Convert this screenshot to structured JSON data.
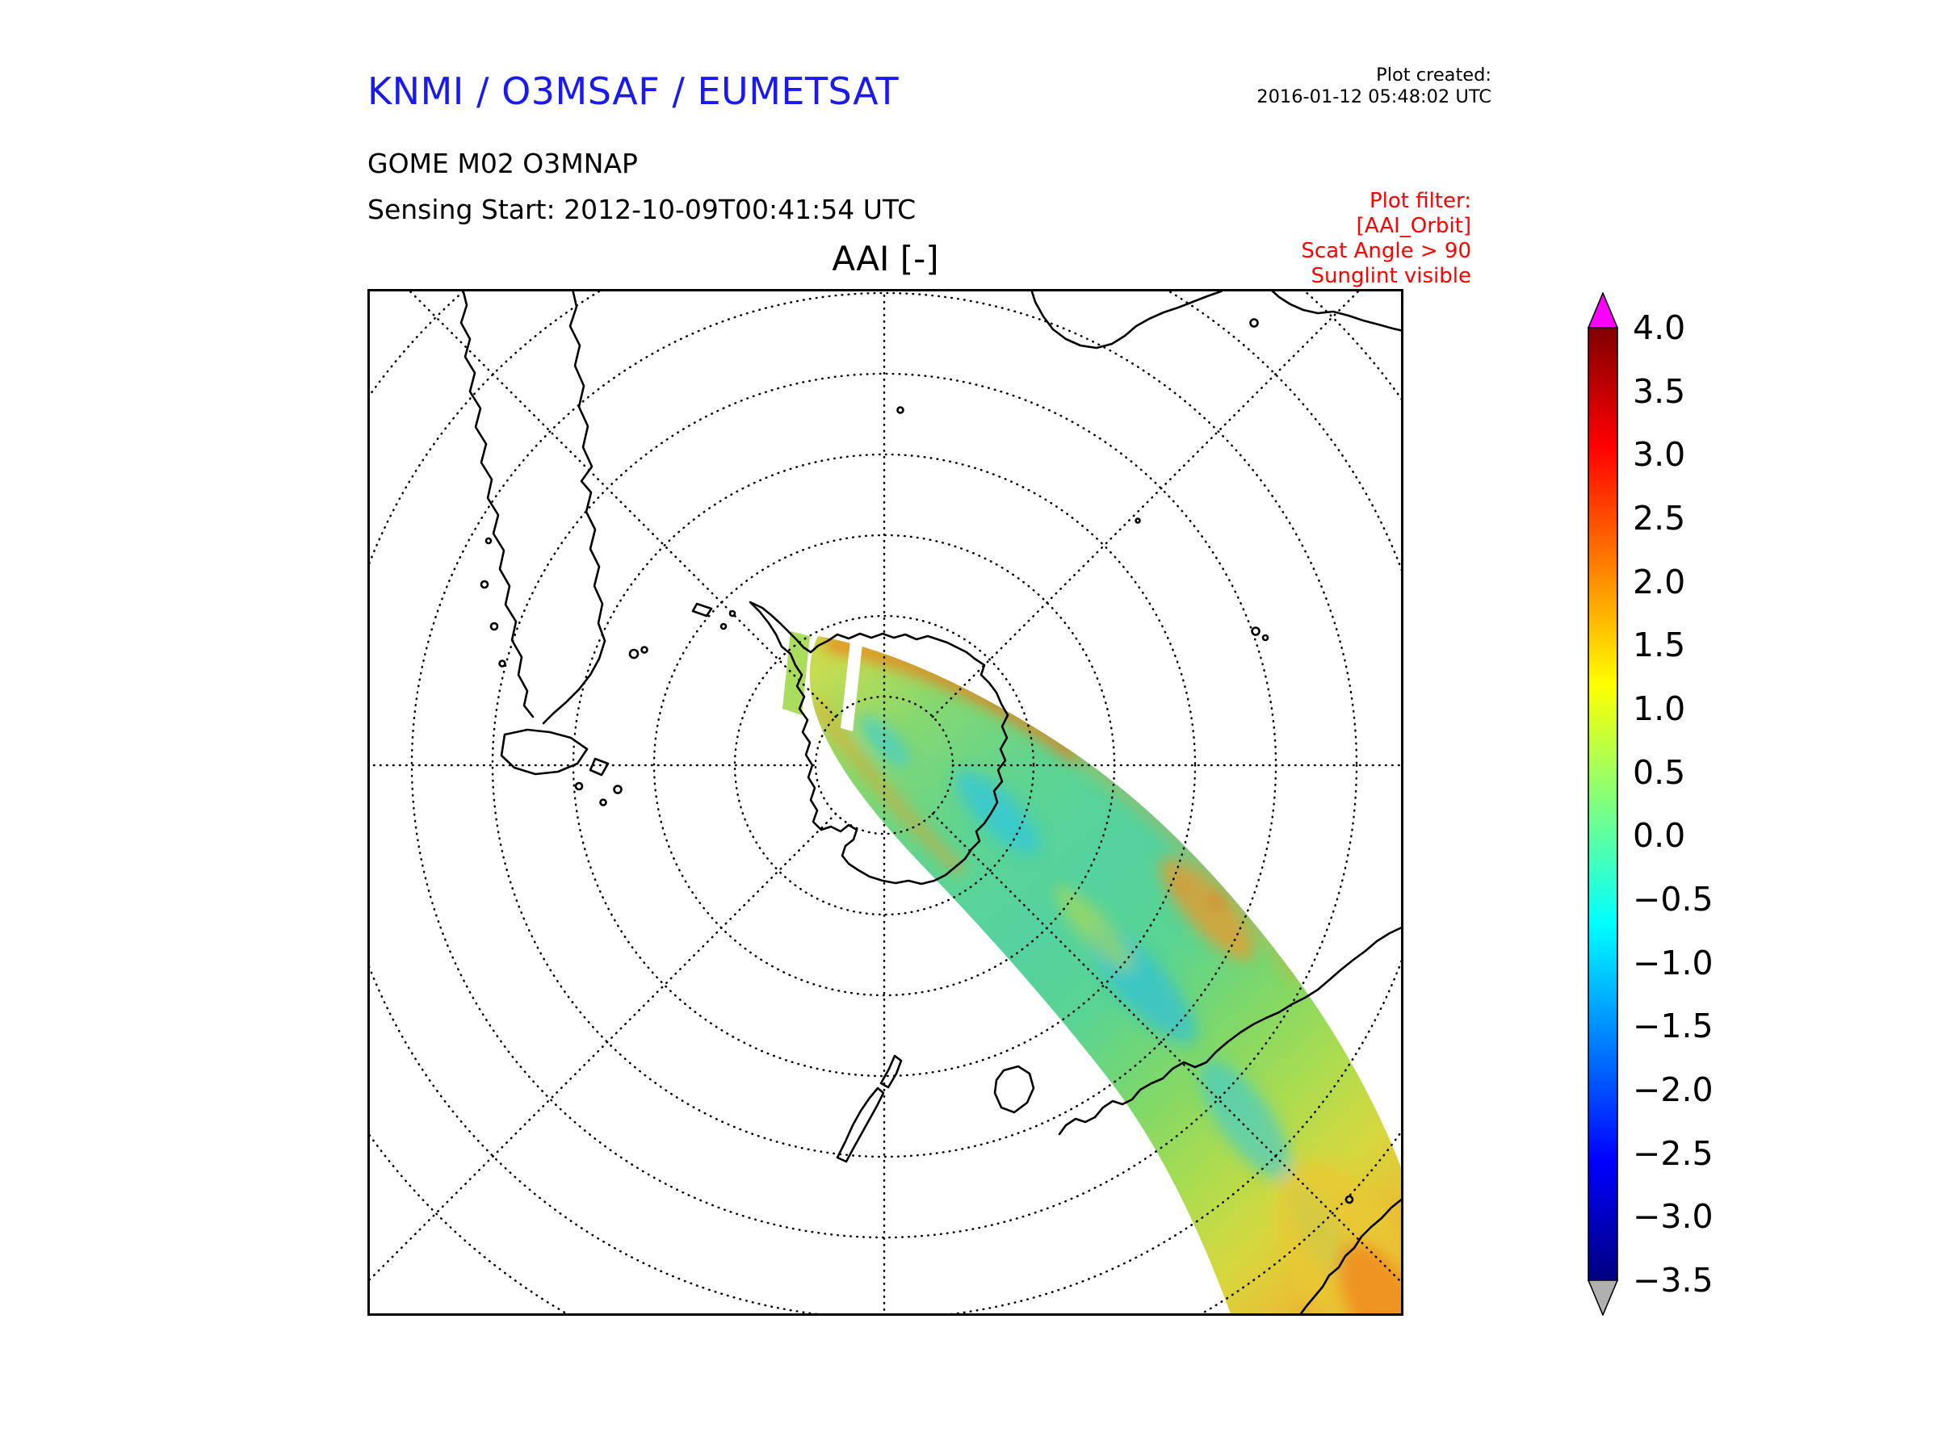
{
  "header": {
    "org_title": "KNMI / O3MSAF / EUMETSAT",
    "org_title_color": "#1a1aee",
    "plot_created_label": "Plot created:",
    "plot_created_value": "2016-01-12 05:48:02 UTC",
    "product_line": "GOME M02 O3MNAP",
    "sensing_line": "Sensing Start: 2012-10-09T00:41:54 UTC",
    "filter_color": "#ff0000",
    "filter_lines": [
      "Plot filter:",
      "[AAI_Orbit]",
      "Scat Angle > 90",
      "Sunglint visible"
    ]
  },
  "chart_data": {
    "type": "heatmap",
    "title": "AAI [-]",
    "projection": "south polar stereographic",
    "map_extent": "Southern Hemisphere centered on the South Pole; mid-latitude coasts visible at the map edges",
    "graticule": {
      "parallels_spacing_deg": 10,
      "meridians_spacing_deg": 45,
      "line_style": "dotted"
    },
    "visible_coastlines": [
      "Antarctica with Antarctic Peninsula",
      "southern South America (Patagonia, Tierra del Fuego, Falklands)",
      "southern Africa",
      "southern Australia",
      "Tasmania",
      "New Zealand",
      "scattered sub-antarctic islands"
    ],
    "colorbar": {
      "range": [
        -3.5,
        4.0
      ],
      "ticks": [
        4.0,
        3.5,
        3.0,
        2.5,
        2.0,
        1.5,
        1.0,
        0.5,
        0.0,
        -0.5,
        -1.0,
        -1.5,
        -2.0,
        -2.5,
        -3.0,
        -3.5
      ],
      "tick_labels": [
        "4.0",
        "3.5",
        "3.0",
        "2.5",
        "2.0",
        "1.5",
        "1.0",
        "0.5",
        "0.0",
        "−0.5",
        "−1.0",
        "−1.5",
        "−2.0",
        "−2.5",
        "−3.0",
        "−3.5"
      ],
      "colormap": "jet-like rainbow",
      "over_arrow_color": "#ff00ff",
      "under_arrow_color": "#b0b0b0",
      "gradient_stops": [
        {
          "offset": 0.0,
          "color": "#7f0000"
        },
        {
          "offset": 0.125,
          "color": "#ff0000"
        },
        {
          "offset": 0.375,
          "color": "#ffff00"
        },
        {
          "offset": 0.625,
          "color": "#00ffff"
        },
        {
          "offset": 0.875,
          "color": "#0000ff"
        },
        {
          "offset": 1.0,
          "color": "#00007f"
        }
      ]
    },
    "swath": {
      "description": "Single GOME-2 (MetOp-A) orbit swath of Absorbing Aerosol Index starting near the South Pole and sweeping north-east across East Antarctica toward the ocean south of Australia; a narrow detached sliver and a thin white data gap appear at the near-pole end.",
      "aai_along_track_samples": [
        {
          "track_fraction": 0.0,
          "mean_aai": 1.1
        },
        {
          "track_fraction": 0.1,
          "mean_aai": 0.6
        },
        {
          "track_fraction": 0.2,
          "mean_aai": 0.1
        },
        {
          "track_fraction": 0.3,
          "mean_aai": -0.3
        },
        {
          "track_fraction": 0.4,
          "mean_aai": -0.5
        },
        {
          "track_fraction": 0.5,
          "mean_aai": 0.2
        },
        {
          "track_fraction": 0.6,
          "mean_aai": -0.4
        },
        {
          "track_fraction": 0.7,
          "mean_aai": -0.1
        },
        {
          "track_fraction": 0.8,
          "mean_aai": 0.4
        },
        {
          "track_fraction": 0.9,
          "mean_aai": 1.0
        },
        {
          "track_fraction": 1.0,
          "mean_aai": 1.7
        }
      ],
      "cross_track_note": "Poleward (upper-left) swath edge shows elevated AAI around 1.5 to 2.5 (yellow-orange); interior patches dip to about -1.5 (cyan-blue); far end near the bottom-right map corner rises to about 2 (orange).",
      "render_gradient": [
        {
          "offset": 0.0,
          "color": "#c8dc50"
        },
        {
          "offset": 0.12,
          "color": "#86d870"
        },
        {
          "offset": 0.26,
          "color": "#5ed492"
        },
        {
          "offset": 0.4,
          "color": "#54d2a0"
        },
        {
          "offset": 0.52,
          "color": "#5ad492"
        },
        {
          "offset": 0.64,
          "color": "#80d868"
        },
        {
          "offset": 0.75,
          "color": "#acdc50"
        },
        {
          "offset": 0.85,
          "color": "#d6d83e"
        },
        {
          "offset": 0.93,
          "color": "#e8c034"
        },
        {
          "offset": 1.0,
          "color": "#f09a2a"
        }
      ]
    }
  }
}
